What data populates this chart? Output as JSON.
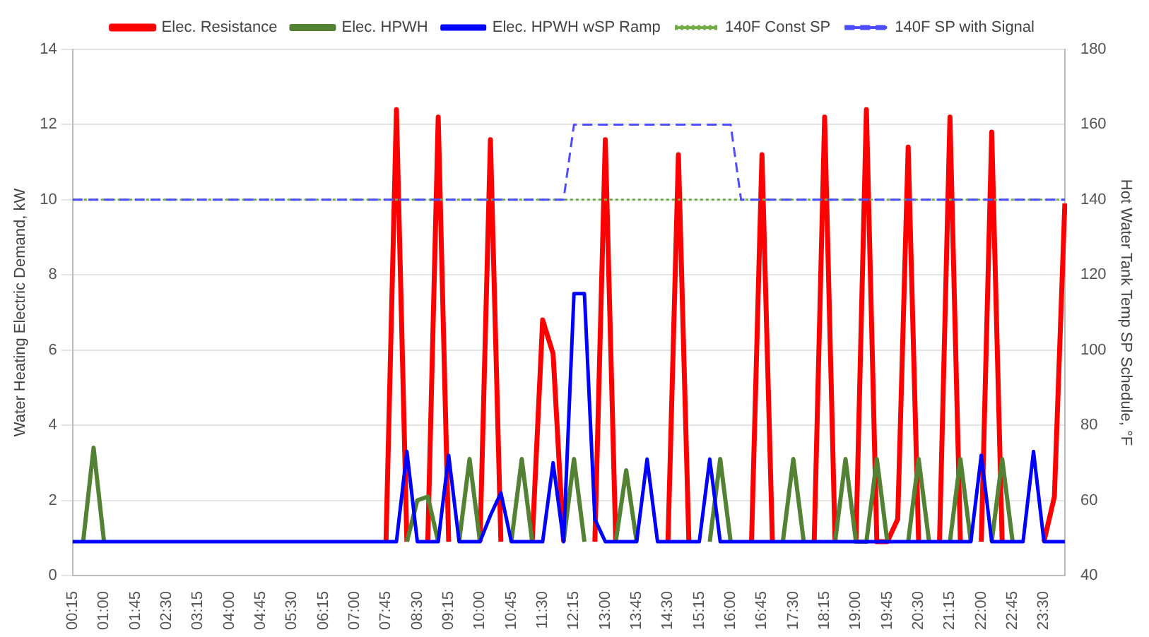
{
  "chart_data": {
    "type": "line",
    "categories": [
      "00:15",
      null,
      null,
      "01:00",
      null,
      null,
      "01:45",
      null,
      null,
      "02:30",
      null,
      null,
      "03:15",
      null,
      null,
      "04:00",
      null,
      null,
      "04:45",
      null,
      null,
      "05:30",
      null,
      null,
      "06:15",
      null,
      null,
      "07:00",
      null,
      null,
      "07:45",
      null,
      null,
      "08:30",
      null,
      null,
      "09:15",
      null,
      null,
      "10:00",
      null,
      null,
      "10:45",
      null,
      null,
      "11:30",
      null,
      null,
      "12:15",
      null,
      null,
      "13:00",
      null,
      null,
      "13:45",
      null,
      null,
      "14:30",
      null,
      null,
      "15:15",
      null,
      null,
      "16:00",
      null,
      null,
      "16:45",
      null,
      null,
      "17:30",
      null,
      null,
      "18:15",
      null,
      null,
      "19:00",
      null,
      null,
      "19:45",
      null,
      null,
      "20:30",
      null,
      null,
      "21:15",
      null,
      null,
      "22:00",
      null,
      null,
      "22:45",
      null,
      null,
      "23:30",
      null,
      null
    ],
    "series": [
      {
        "name": "Elec. Resistance",
        "color": "#ff0000",
        "values": [
          null,
          null,
          null,
          null,
          null,
          null,
          null,
          null,
          null,
          null,
          null,
          null,
          null,
          null,
          null,
          null,
          null,
          null,
          null,
          null,
          null,
          null,
          null,
          null,
          null,
          null,
          null,
          null,
          null,
          null,
          0.9,
          12.4,
          0.9,
          null,
          0.9,
          12.2,
          0.9,
          null,
          null,
          0.9,
          11.6,
          0.9,
          null,
          null,
          0.9,
          6.8,
          5.9,
          0.9,
          null,
          null,
          0.9,
          11.6,
          0.9,
          null,
          null,
          null,
          null,
          0.9,
          11.2,
          0.9,
          null,
          null,
          null,
          null,
          null,
          0.9,
          11.2,
          0.9,
          null,
          null,
          null,
          0.9,
          12.2,
          0.9,
          null,
          0.9,
          12.4,
          0.9,
          0.9,
          1.5,
          11.4,
          0.9,
          null,
          0.9,
          12.2,
          0.9,
          null,
          0.9,
          11.8,
          0.9,
          null,
          null,
          null,
          0.9,
          2.1,
          9.9
        ]
      },
      {
        "name": "Elec. HPWH",
        "color": "#548235",
        "values": [
          null,
          0.9,
          3.4,
          0.9,
          null,
          null,
          null,
          null,
          null,
          null,
          null,
          null,
          null,
          null,
          null,
          null,
          null,
          null,
          null,
          null,
          null,
          null,
          null,
          null,
          null,
          null,
          null,
          null,
          null,
          null,
          null,
          null,
          0.9,
          2.0,
          2.1,
          0.9,
          null,
          0.9,
          3.1,
          0.9,
          null,
          null,
          0.9,
          3.1,
          0.9,
          null,
          null,
          0.9,
          3.1,
          0.9,
          null,
          null,
          0.9,
          2.8,
          0.9,
          null,
          null,
          null,
          null,
          null,
          null,
          0.9,
          3.1,
          0.9,
          null,
          null,
          null,
          null,
          0.9,
          3.1,
          0.9,
          null,
          null,
          0.9,
          3.1,
          0.9,
          0.9,
          3.1,
          0.9,
          null,
          0.9,
          3.1,
          0.9,
          null,
          0.9,
          3.1,
          0.9,
          null,
          0.9,
          3.1,
          0.9,
          null,
          null,
          null,
          null,
          null
        ]
      },
      {
        "name": "Elec. HPWH wSP Ramp",
        "color": "#0000ff",
        "values": [
          0.9,
          0.9,
          0.9,
          0.9,
          0.9,
          0.9,
          0.9,
          0.9,
          0.9,
          0.9,
          0.9,
          0.9,
          0.9,
          0.9,
          0.9,
          0.9,
          0.9,
          0.9,
          0.9,
          0.9,
          0.9,
          0.9,
          0.9,
          0.9,
          0.9,
          0.9,
          0.9,
          0.9,
          0.9,
          0.9,
          0.9,
          0.9,
          3.3,
          0.9,
          0.9,
          0.9,
          3.2,
          0.9,
          0.9,
          0.9,
          1.6,
          2.2,
          0.9,
          0.9,
          0.9,
          0.9,
          3.0,
          0.9,
          7.5,
          7.5,
          1.5,
          0.9,
          0.9,
          0.9,
          0.9,
          3.1,
          0.9,
          0.9,
          0.9,
          0.9,
          0.9,
          3.1,
          0.9,
          0.9,
          0.9,
          0.9,
          0.9,
          0.9,
          0.9,
          0.9,
          0.9,
          0.9,
          0.9,
          0.9,
          0.9,
          0.9,
          0.9,
          0.9,
          0.9,
          0.9,
          0.9,
          0.9,
          0.9,
          0.9,
          0.9,
          0.9,
          0.9,
          3.2,
          0.9,
          0.9,
          0.9,
          0.9,
          3.3,
          0.9,
          0.9,
          0.9
        ]
      },
      {
        "name": "140F Const SP",
        "color": "#70ad47",
        "axis": "y2",
        "line_style": "dotted",
        "values": [
          140,
          140,
          140,
          140,
          140,
          140,
          140,
          140,
          140,
          140,
          140,
          140,
          140,
          140,
          140,
          140,
          140,
          140,
          140,
          140,
          140,
          140,
          140,
          140,
          140,
          140,
          140,
          140,
          140,
          140,
          140,
          140,
          140,
          140,
          140,
          140,
          140,
          140,
          140,
          140,
          140,
          140,
          140,
          140,
          140,
          140,
          140,
          140,
          140,
          140,
          140,
          140,
          140,
          140,
          140,
          140,
          140,
          140,
          140,
          140,
          140,
          140,
          140,
          140,
          140,
          140,
          140,
          140,
          140,
          140,
          140,
          140,
          140,
          140,
          140,
          140,
          140,
          140,
          140,
          140,
          140,
          140,
          140,
          140,
          140,
          140,
          140,
          140,
          140,
          140,
          140,
          140,
          140,
          140,
          140,
          140
        ]
      },
      {
        "name": "140F SP with Signal",
        "color": "#4d4dff",
        "axis": "y2",
        "line_style": "dashed",
        "values": [
          140,
          140,
          140,
          140,
          140,
          140,
          140,
          140,
          140,
          140,
          140,
          140,
          140,
          140,
          140,
          140,
          140,
          140,
          140,
          140,
          140,
          140,
          140,
          140,
          140,
          140,
          140,
          140,
          140,
          140,
          140,
          140,
          140,
          140,
          140,
          140,
          140,
          140,
          140,
          140,
          140,
          140,
          140,
          140,
          140,
          140,
          140,
          140,
          160,
          160,
          160,
          160,
          160,
          160,
          160,
          160,
          160,
          160,
          160,
          160,
          160,
          160,
          160,
          160,
          140,
          140,
          140,
          140,
          140,
          140,
          140,
          140,
          140,
          140,
          140,
          140,
          140,
          140,
          140,
          140,
          140,
          140,
          140,
          140,
          140,
          140,
          140,
          140,
          140,
          140,
          140,
          140,
          140,
          140,
          140,
          140
        ]
      }
    ],
    "ylabel": "Water Heating Electric Demand, kW",
    "y2label": "Hot Water Tank Temp SP Schedule, °F",
    "ylim": [
      0,
      14
    ],
    "yticks": [
      0,
      2,
      4,
      6,
      8,
      10,
      12,
      14
    ],
    "y2lim": [
      40,
      180
    ],
    "y2ticks": [
      40,
      60,
      80,
      100,
      120,
      140,
      160,
      180
    ],
    "grid": "y",
    "legend": "top",
    "marker": "none",
    "line_style": "solid"
  }
}
